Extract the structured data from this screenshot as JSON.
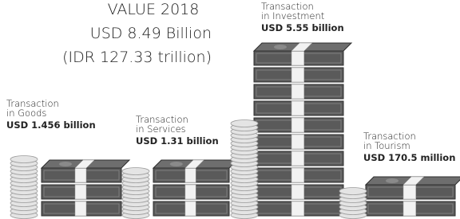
{
  "header": {
    "title": "VALUE 2018",
    "usd": "USD 8.49 Billion",
    "idr": "(IDR 127.33 trillion)"
  },
  "items": [
    {
      "label": [
        "Transaction",
        "in Goods"
      ],
      "amount": "USD 1.456 billion"
    },
    {
      "label": [
        "Transaction",
        "in Services"
      ],
      "amount": "USD 1.31 billion"
    },
    {
      "label": [
        "Transaction",
        "in Investment"
      ],
      "amount": "USD 5.55 billion"
    },
    {
      "label": [
        "Transaction",
        "in Tourism"
      ],
      "amount": "USD 170.5 million"
    }
  ]
}
